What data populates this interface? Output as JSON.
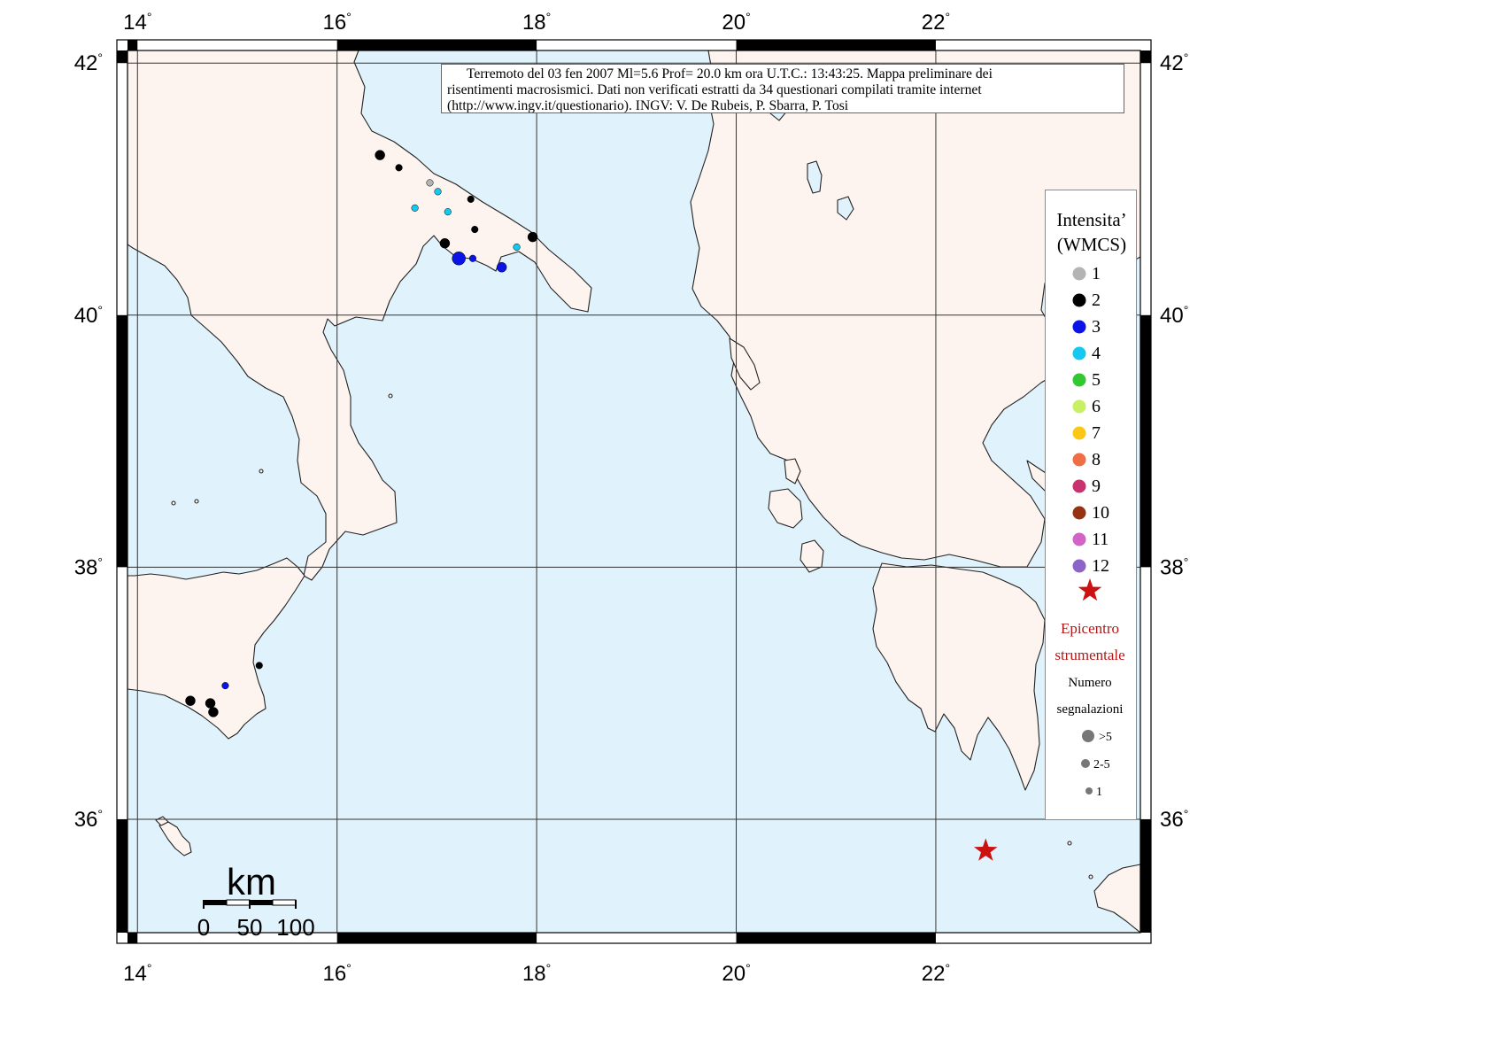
{
  "caption": {
    "line1": "Terremoto del 03 fen 2007 Ml=5.6 Prof= 20.0 km ora U.T.C.: 13:43:25.  Mappa preliminare dei",
    "line2": "risentimenti macrosismici.    Dati non verificati estratti da 34 questionari compilati tramite internet",
    "line3": "(http://www.ingv.it/questionario).    INGV: V.  De Rubeis, P.  Sbarra, P.  Tosi"
  },
  "axes": {
    "lon_labels": [
      "14",
      "16",
      "18",
      "20",
      "22"
    ],
    "lat_labels": [
      "42",
      "40",
      "38",
      "36"
    ],
    "degree_symbol": "°"
  },
  "legend": {
    "title_line1": "Intensita’",
    "title_line2": "(WMCS)",
    "intensities": [
      {
        "label": "1",
        "color": "#b4b4b4"
      },
      {
        "label": "2",
        "color": "#000000"
      },
      {
        "label": "3",
        "color": "#0a14e6"
      },
      {
        "label": "4",
        "color": "#14c8f0"
      },
      {
        "label": "5",
        "color": "#32c832"
      },
      {
        "label": "6",
        "color": "#c8f064"
      },
      {
        "label": "7",
        "color": "#fac814"
      },
      {
        "label": "8",
        "color": "#f06e46"
      },
      {
        "label": "9",
        "color": "#c8326e"
      },
      {
        "label": "10",
        "color": "#963214"
      },
      {
        "label": "11",
        "color": "#d264c8"
      },
      {
        "label": "12",
        "color": "#8c64c8"
      }
    ],
    "epicenter_line1": "Epicentro",
    "epicenter_line2": "strumentale",
    "epicenter_color": "#cc1111",
    "count_title_line1": "Numero",
    "count_title_line2": "segnalazioni",
    "count_sizes": [
      ">5",
      "2-5",
      "1"
    ]
  },
  "scale_bar": {
    "unit": "km",
    "labels": [
      "0",
      "50",
      "100"
    ]
  },
  "colors": {
    "sea": "#e0f2fb",
    "land": "#fdf3ef",
    "coast": "#222222",
    "grid": "#333333"
  },
  "map_data": {
    "lon_range": [
      13.9,
      24.05
    ],
    "lat_range": [
      35.1,
      42.1
    ],
    "epicenter": {
      "lon": 22.5,
      "lat": 35.75
    },
    "observations": [
      {
        "lon": 16.43,
        "lat": 41.27,
        "intensity": 2,
        "count": "2-5"
      },
      {
        "lon": 16.62,
        "lat": 41.17,
        "intensity": 2,
        "count": "1"
      },
      {
        "lon": 16.93,
        "lat": 41.05,
        "intensity": 1,
        "count": "1"
      },
      {
        "lon": 17.01,
        "lat": 40.98,
        "intensity": 4,
        "count": "1"
      },
      {
        "lon": 17.34,
        "lat": 40.92,
        "intensity": 2,
        "count": "1"
      },
      {
        "lon": 16.78,
        "lat": 40.85,
        "intensity": 4,
        "count": "1"
      },
      {
        "lon": 17.11,
        "lat": 40.82,
        "intensity": 4,
        "count": "1"
      },
      {
        "lon": 17.38,
        "lat": 40.68,
        "intensity": 2,
        "count": "1"
      },
      {
        "lon": 17.96,
        "lat": 40.62,
        "intensity": 2,
        "count": "2-5"
      },
      {
        "lon": 17.8,
        "lat": 40.54,
        "intensity": 4,
        "count": "1"
      },
      {
        "lon": 17.08,
        "lat": 40.57,
        "intensity": 2,
        "count": "2-5"
      },
      {
        "lon": 17.22,
        "lat": 40.45,
        "intensity": 3,
        "count": ">5"
      },
      {
        "lon": 17.36,
        "lat": 40.45,
        "intensity": 3,
        "count": "1"
      },
      {
        "lon": 17.65,
        "lat": 40.38,
        "intensity": 3,
        "count": "2-5"
      },
      {
        "lon": 15.22,
        "lat": 37.22,
        "intensity": 2,
        "count": "1"
      },
      {
        "lon": 14.88,
        "lat": 37.06,
        "intensity": 3,
        "count": "1"
      },
      {
        "lon": 14.53,
        "lat": 36.94,
        "intensity": 2,
        "count": "2-5"
      },
      {
        "lon": 14.73,
        "lat": 36.92,
        "intensity": 2,
        "count": "2-5"
      },
      {
        "lon": 14.76,
        "lat": 36.85,
        "intensity": 2,
        "count": "2-5"
      }
    ]
  }
}
